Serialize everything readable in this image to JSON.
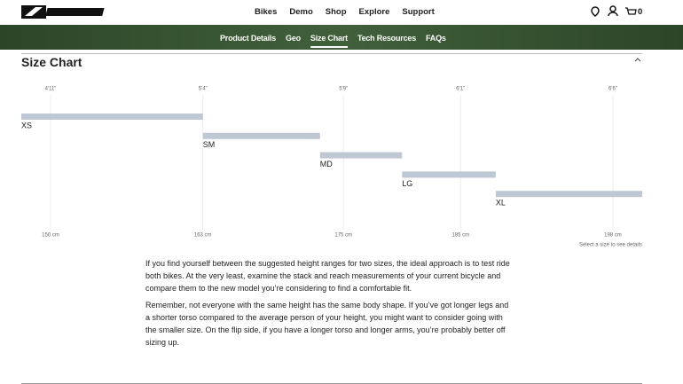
{
  "header": {
    "nav": [
      "Bikes",
      "Demo",
      "Shop",
      "Explore",
      "Support"
    ],
    "cart_count": 0
  },
  "subnav": {
    "items": [
      "Product Details",
      "Geo",
      "Size Chart",
      "Tech Resources",
      "FAQs"
    ]
  },
  "section": {
    "title": "Size Chart"
  },
  "chart_data": {
    "type": "range-bar",
    "categories": [
      "XS",
      "SM",
      "MD",
      "LG",
      "XL"
    ],
    "low": [
      147.5,
      163,
      173,
      180,
      188
    ],
    "high": [
      163,
      173,
      180,
      188,
      200.5
    ],
    "color": "#bec8d5",
    "xlim": [
      147.5,
      200.5
    ],
    "xticks": [
      {
        "value": 150,
        "label": "150 cm"
      },
      {
        "value": 163,
        "label": "163 cm"
      },
      {
        "value": 175,
        "label": "175 cm"
      },
      {
        "value": 185,
        "label": "185 cm"
      },
      {
        "value": 198,
        "label": "198 cm"
      }
    ],
    "x2ticks": [
      {
        "value": 150,
        "label": "4'11\""
      },
      {
        "value": 163,
        "label": "5'4\""
      },
      {
        "value": 175,
        "label": "5'9\""
      },
      {
        "value": 185,
        "label": "6'1\""
      },
      {
        "value": 198,
        "label": "6'6\""
      }
    ],
    "annotation": "Select a size to see details",
    "grid": true
  },
  "body": {
    "paragraphs": [
      "If you find yourself between the suggested height ranges for two sizes, the ideal approach is to test ride both bikes. At the very least, examine the stack and reach measurements of your current bicycle and compare them to the new model you’re considering to find a comfortable fit.",
      "Remember, not everyone with the same height has the same body shape. If you’ve got longer legs and a shorter torso compared to the average person of your height, you might want to consider going with the smaller size. On the flip side, if you have a longer torso and longer arms, you’re probably better off sizing up."
    ]
  }
}
